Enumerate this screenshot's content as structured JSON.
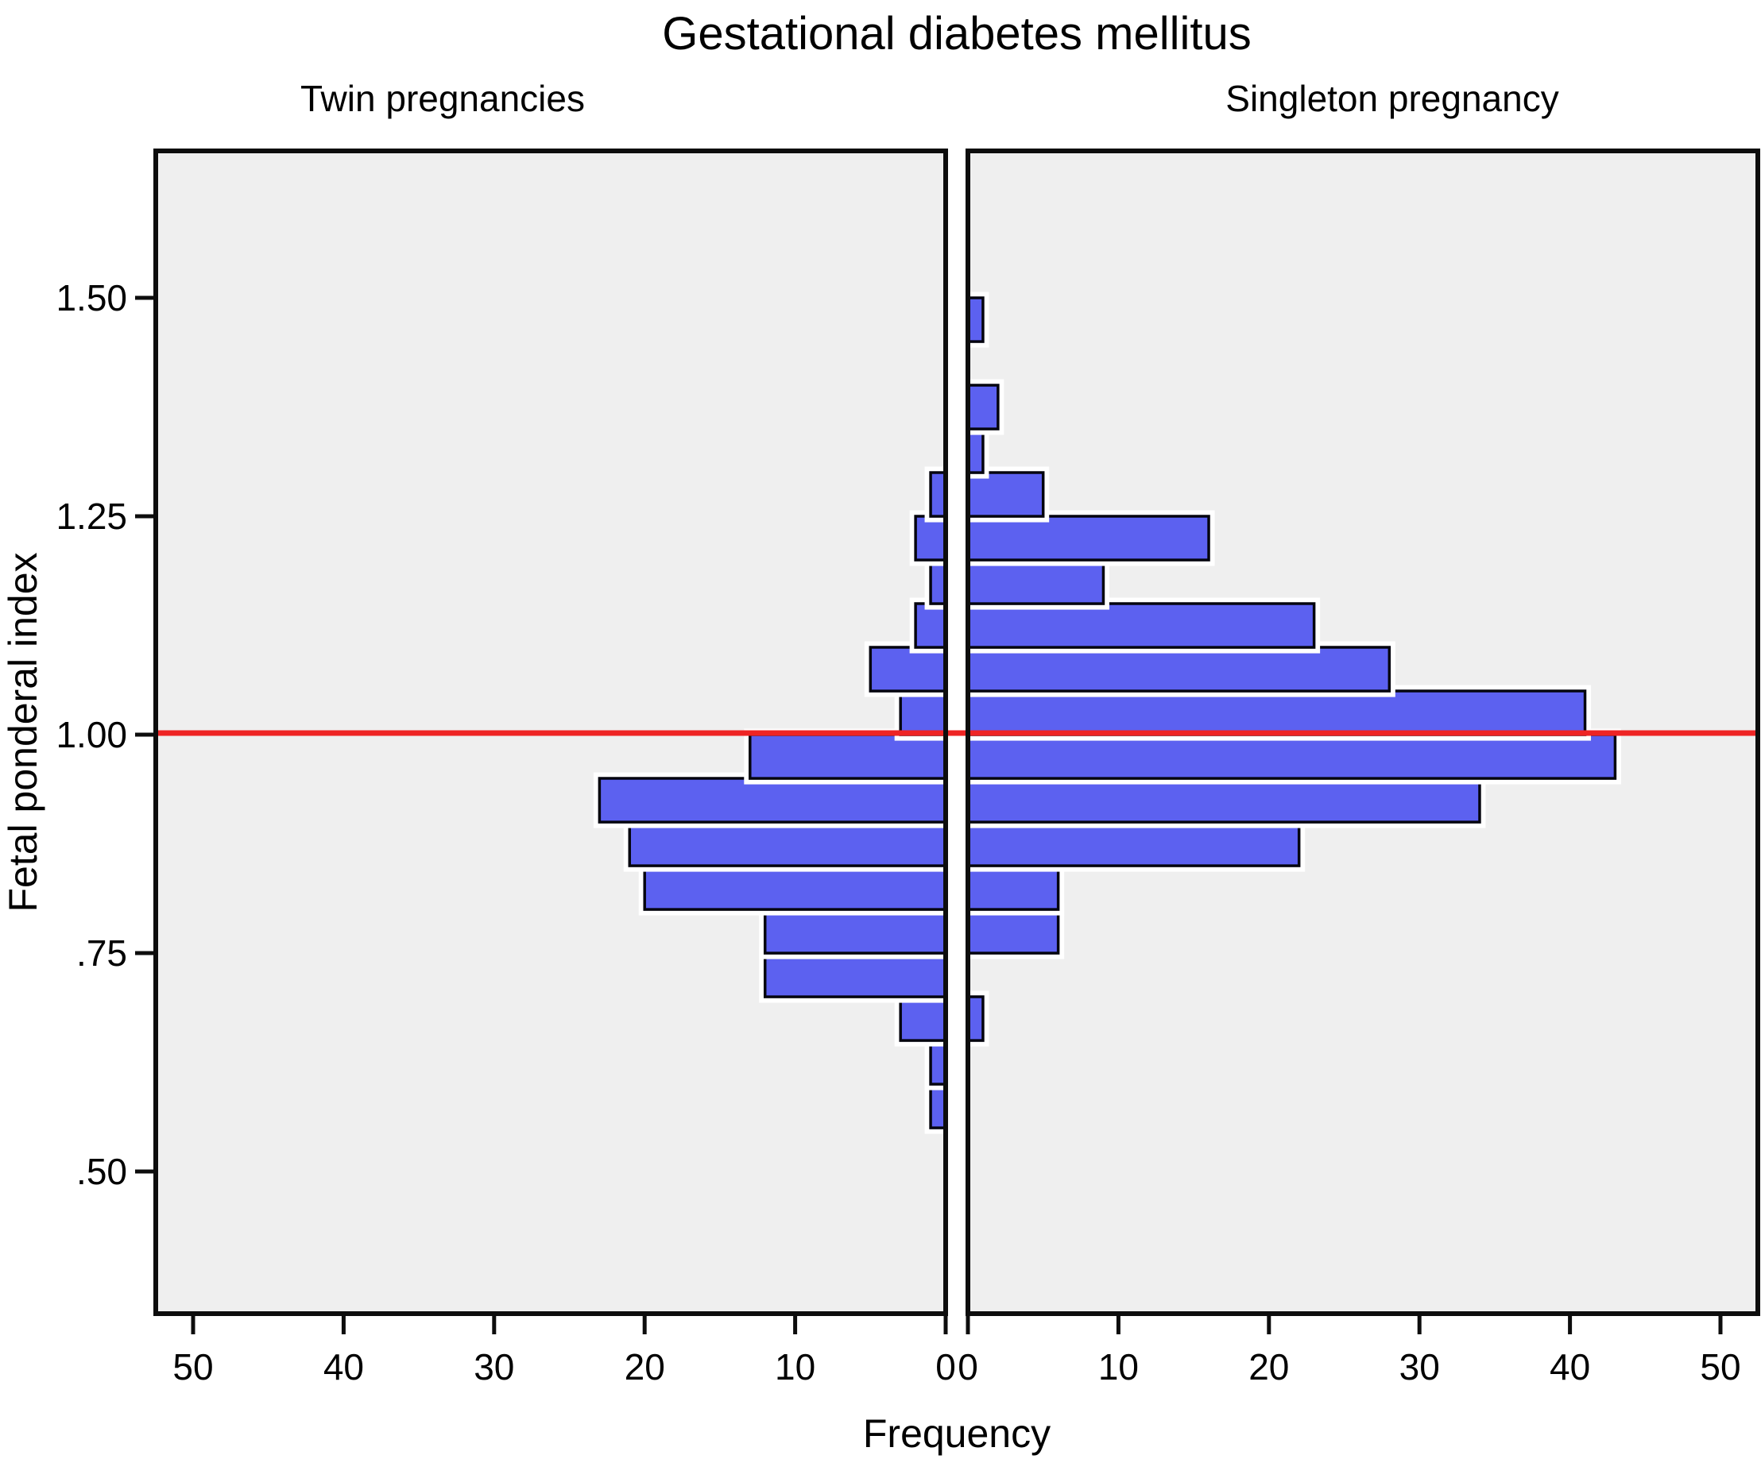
{
  "chart_data": {
    "type": "bar",
    "subtype": "back_to_back_histogram",
    "title": "Gestational diabetes mellitus",
    "xlabel": "Frequency",
    "ylabel": "Fetal ponderal index",
    "panels": [
      {
        "side": "left",
        "label": "Twin pregnancies",
        "x_tick_labels": [
          "50",
          "40",
          "30",
          "20",
          "10",
          "0"
        ],
        "x_tick_values": [
          50,
          40,
          30,
          20,
          10,
          0
        ]
      },
      {
        "side": "right",
        "label": "Singleton pregnancy",
        "x_tick_labels": [
          "0",
          "10",
          "20",
          "30",
          "40",
          "50"
        ],
        "x_tick_values": [
          0,
          10,
          20,
          30,
          40,
          50
        ]
      }
    ],
    "y_axis": {
      "tick_labels": [
        "1.50",
        "1.25",
        "1.00",
        ".75",
        ".50"
      ],
      "tick_values": [
        1.5,
        1.25,
        1.0,
        0.75,
        0.5
      ],
      "min": 0.34,
      "max": 1.67
    },
    "x_axis": {
      "max_per_side": 52.5,
      "grid": false
    },
    "bin_width": 0.05,
    "categories": [
      0.5,
      0.55,
      0.6,
      0.65,
      0.7,
      0.75,
      0.8,
      0.85,
      0.9,
      0.95,
      1.0,
      1.05,
      1.1,
      1.15,
      1.2,
      1.25,
      1.3,
      1.35,
      1.4,
      1.45
    ],
    "series": [
      {
        "name": "Twin pregnancies",
        "side": "left",
        "values": [
          0,
          1,
          1,
          3,
          12,
          12,
          20,
          21,
          23,
          13,
          3,
          5,
          2,
          1,
          2,
          1,
          0,
          0,
          0,
          0
        ]
      },
      {
        "name": "Singleton pregnancy",
        "side": "right",
        "values": [
          0,
          0,
          0,
          1,
          0,
          6,
          6,
          22,
          34,
          43,
          41,
          28,
          23,
          9,
          16,
          5,
          1,
          2,
          0,
          1
        ]
      }
    ],
    "bins": [
      {
        "y_low": 0.5,
        "twin": 0,
        "singleton": 0
      },
      {
        "y_low": 0.55,
        "twin": 1,
        "singleton": 0
      },
      {
        "y_low": 0.6,
        "twin": 1,
        "singleton": 0
      },
      {
        "y_low": 0.65,
        "twin": 3,
        "singleton": 1
      },
      {
        "y_low": 0.7,
        "twin": 12,
        "singleton": 0
      },
      {
        "y_low": 0.75,
        "twin": 12,
        "singleton": 6
      },
      {
        "y_low": 0.8,
        "twin": 20,
        "singleton": 6
      },
      {
        "y_low": 0.85,
        "twin": 21,
        "singleton": 22
      },
      {
        "y_low": 0.9,
        "twin": 23,
        "singleton": 34
      },
      {
        "y_low": 0.95,
        "twin": 13,
        "singleton": 43
      },
      {
        "y_low": 1.0,
        "twin": 3,
        "singleton": 41
      },
      {
        "y_low": 1.05,
        "twin": 5,
        "singleton": 28
      },
      {
        "y_low": 1.1,
        "twin": 2,
        "singleton": 23
      },
      {
        "y_low": 1.15,
        "twin": 1,
        "singleton": 9
      },
      {
        "y_low": 1.2,
        "twin": 2,
        "singleton": 16
      },
      {
        "y_low": 1.25,
        "twin": 1,
        "singleton": 5
      },
      {
        "y_low": 1.3,
        "twin": 0,
        "singleton": 1
      },
      {
        "y_low": 1.35,
        "twin": 0,
        "singleton": 2
      },
      {
        "y_low": 1.4,
        "twin": 0,
        "singleton": 0
      },
      {
        "y_low": 1.45,
        "twin": 0,
        "singleton": 1
      }
    ],
    "reference_line": {
      "y": 1.0,
      "color": "#ee2424"
    },
    "colors": {
      "bar_fill": "#5c61f0",
      "bar_stroke": "#05050f",
      "bar_halo": "#ffffff",
      "panel_background": "#efefef",
      "frame": "#0d0d0d",
      "reference_line": "#ee2424"
    },
    "legend": {
      "visible": false
    }
  }
}
